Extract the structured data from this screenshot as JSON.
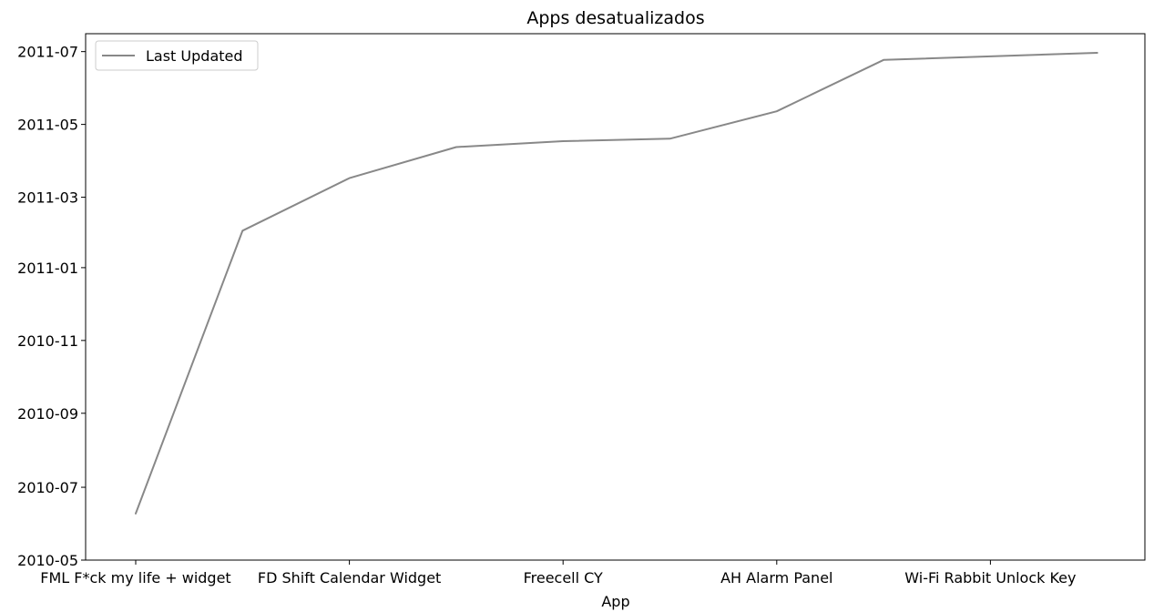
{
  "chart_data": {
    "type": "line",
    "title": "Apps desatualizados",
    "xlabel": "App",
    "ylabel": "",
    "categories": [
      "FML F*ck my life + widget",
      "",
      "FD Shift Calendar Widget",
      "",
      "Freecell CY",
      "",
      "AH Alarm Panel",
      "",
      "Wi-Fi Rabbit Unlock Key",
      ""
    ],
    "x_tick_labels": [
      "FML F*ck my life + widget",
      "FD Shift Calendar Widget",
      "Freecell CY",
      "AH Alarm Panel",
      "Wi-Fi Rabbit Unlock Key"
    ],
    "series": [
      {
        "name": "Last Updated",
        "color": "#888888",
        "values": [
          "2010-06-09",
          "2011-02-01",
          "2011-03-17",
          "2011-04-12",
          "2011-04-17",
          "2011-04-19",
          "2011-05-12",
          "2011-06-24",
          "2011-06-27",
          "2011-06-30"
        ]
      }
    ],
    "y_tick_labels": [
      "2010-05",
      "2010-07",
      "2010-09",
      "2010-11",
      "2011-01",
      "2011-03",
      "2011-05",
      "2011-07"
    ],
    "ylim": [
      "2010-05-01",
      "2011-07-16"
    ],
    "legend_position": "top-left",
    "grid": false
  }
}
